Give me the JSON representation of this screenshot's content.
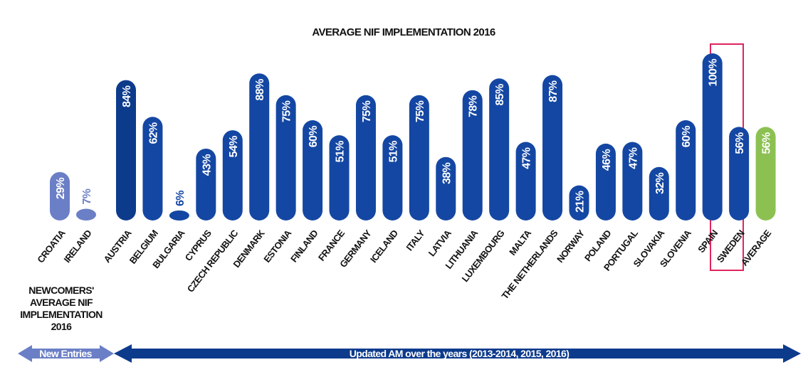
{
  "chart_data": {
    "type": "bar",
    "title": "AVERAGE NIF IMPLEMENTATION 2016",
    "categories": [
      "CROATIA",
      "IRELAND",
      "AUSTRIA",
      "BELGIUM",
      "BULGARIA",
      "CYPRUS",
      "CZECH REPUBLIC",
      "DENMARK",
      "ESTONIA",
      "FINLAND",
      "FRANCE",
      "GERMANY",
      "ICELAND",
      "ITALY",
      "LATVIA",
      "LITHUANIA",
      "LUXEMBOURG",
      "MALTA",
      "THE NETHERLANDS",
      "NORWAY",
      "POLAND",
      "PORTUGAL",
      "SLOVAKIA",
      "SLOVENIA",
      "SPAIN",
      "SWEDEN",
      "AVERAGE"
    ],
    "values": [
      29,
      7,
      84,
      62,
      6,
      43,
      54,
      88,
      75,
      60,
      51,
      75,
      51,
      75,
      38,
      78,
      85,
      47,
      87,
      21,
      46,
      47,
      32,
      60,
      100,
      56,
      56
    ],
    "value_labels": [
      "29%",
      "7%",
      "84%",
      "62%",
      "6%",
      "43%",
      "54%",
      "88%",
      "75%",
      "60%",
      "51%",
      "75%",
      "51%",
      "75%",
      "38%",
      "78%",
      "85%",
      "47%",
      "87%",
      "21%",
      "46%",
      "47%",
      "32%",
      "60%",
      "100%",
      "56%",
      "56%"
    ],
    "colors": [
      "#6b7fc6",
      "#6b7fc6",
      "#0d3b8c",
      "#1447a3",
      "#1447a3",
      "#1447a3",
      "#1447a3",
      "#1447a3",
      "#1447a3",
      "#1447a3",
      "#1447a3",
      "#1447a3",
      "#1447a3",
      "#1447a3",
      "#1447a3",
      "#1447a3",
      "#1447a3",
      "#1447a3",
      "#1447a3",
      "#1447a3",
      "#1447a3",
      "#1447a3",
      "#1447a3",
      "#1447a3",
      "#1447a3",
      "#1447a3",
      "#8cc152"
    ],
    "ylim": [
      0,
      100
    ],
    "newcomers_note": [
      "NEWCOMERS'",
      "AVERAGE NIF",
      "IMPLEMENTATION",
      "2016"
    ],
    "arrows": [
      "New Entries",
      "Updated AM over the years (2013-2014, 2015, 2016)"
    ]
  }
}
